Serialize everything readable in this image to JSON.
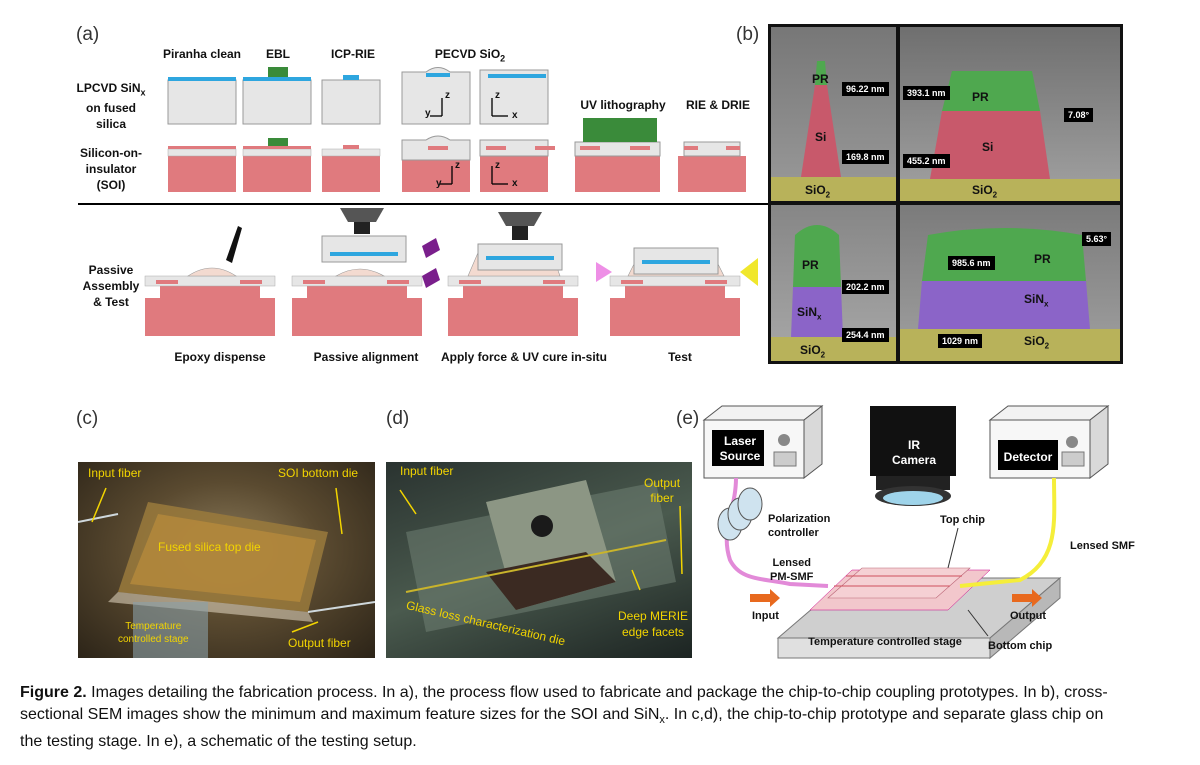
{
  "panel_labels": {
    "a": "(a)",
    "b": "(b)",
    "c": "(c)",
    "d": "(d)",
    "e": "(e)"
  },
  "panel_a": {
    "row_labels": {
      "sinx": [
        "LPCVD SiN",
        "x",
        "on fused",
        "silica"
      ],
      "soi": [
        "Silicon-on-",
        "insulator",
        "(SOI)"
      ],
      "assembly": [
        "Passive",
        "Assembly",
        "& Test"
      ]
    },
    "top_steps": [
      "Piranha clean",
      "EBL",
      "ICP-RIE",
      "PECVD SiO",
      "2",
      "UV lithography",
      "RIE & DRIE"
    ],
    "axes": {
      "z": "z",
      "y": "y",
      "x": "x"
    },
    "bottom_steps": [
      "Epoxy dispense",
      "Passive alignment",
      "Apply force & UV cure in-situ",
      "Test"
    ]
  },
  "panel_b": {
    "tl": {
      "pr": "PR",
      "si": "Si",
      "sio2": "SiO",
      "sub": "2",
      "m1": "96.22 nm",
      "m2": "169.8 nm"
    },
    "tr": {
      "pr": "PR",
      "si": "Si",
      "sio2": "SiO",
      "sub": "2",
      "m1": "393.1 nm",
      "m2": "455.2 nm",
      "angle": "7.08°"
    },
    "bl": {
      "pr": "PR",
      "sin": "SiN",
      "sinsub": "x",
      "sio2": "SiO",
      "sub": "2",
      "m1": "202.2 nm",
      "m2": "254.4 nm"
    },
    "br": {
      "pr": "PR",
      "sin": "SiN",
      "sinsub": "x",
      "sio2": "SiO",
      "sub": "2",
      "m1": "985.6 nm",
      "m2": "1029 nm",
      "angle": "5.63°"
    }
  },
  "panel_c": {
    "input_fiber": "Input fiber",
    "soi_die": "SOI bottom die",
    "top_die": "Fused silica top die",
    "stage": [
      "Temperature",
      "controlled stage"
    ],
    "output_fiber": "Output fiber"
  },
  "panel_d": {
    "input_fiber": "Input fiber",
    "output_fiber": [
      "Output",
      "fiber"
    ],
    "die": "Glass loss characterization die",
    "facets": [
      "Deep MERIE",
      "edge facets"
    ]
  },
  "panel_e": {
    "laser": [
      "Laser",
      "Source"
    ],
    "camera": [
      "IR",
      "Camera"
    ],
    "detector": "Detector",
    "polarization": [
      "Polarization",
      "controller"
    ],
    "top_chip": "Top chip",
    "lensed_smf": "Lensed SMF",
    "lensed_pm": [
      "Lensed",
      "PM-SMF"
    ],
    "input": "Input",
    "output": "Output",
    "stage": "Temperature controlled stage",
    "bottom_chip": "Bottom chip"
  },
  "caption": {
    "label": "Figure 2.",
    "line1": "Images detailing the fabrication process. In a), the process flow used to fabricate and package the chip-to-chip coupling prototypes. In b), cross-",
    "line2a": "sectional SEM images show the minimum and maximum feature sizes for the SOI and SiN",
    "line2sub": "x",
    "line2b": ". In c,d), the chip-to-chip prototype and separate glass chip on",
    "line3": "the testing stage. In e), a schematic of the testing setup."
  },
  "colors": {
    "sin_blue": "#2ea6df",
    "pr_green": "#3a8b3a",
    "si_pink": "#e07a7e",
    "box_gray": "#e4e4e4",
    "arrow_orange": "#e8691e",
    "fiber_yellow": "#f5ee3a",
    "fiber_pink": "#e28ad8"
  }
}
